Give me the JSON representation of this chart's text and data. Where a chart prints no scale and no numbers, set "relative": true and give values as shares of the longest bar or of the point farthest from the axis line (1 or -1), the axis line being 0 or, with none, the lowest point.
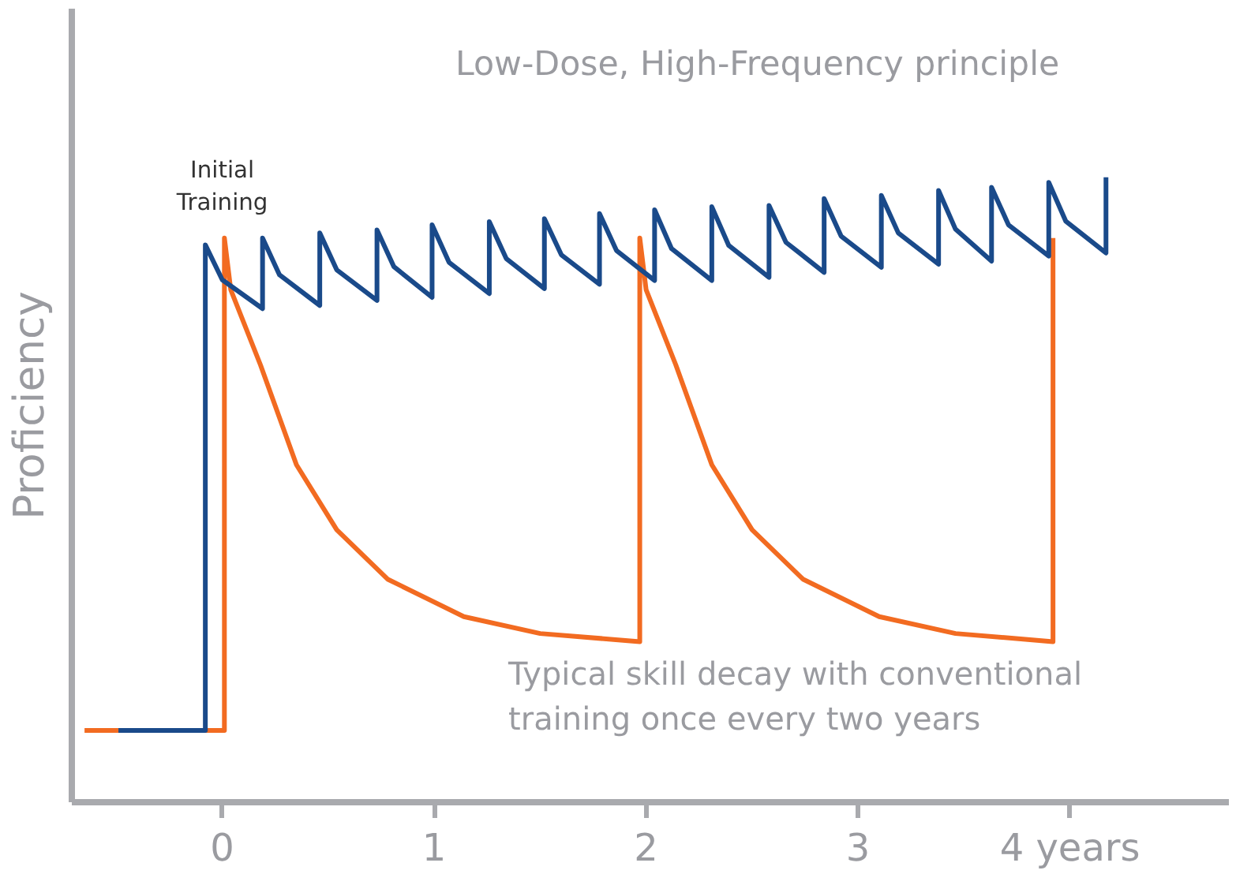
{
  "chart_data": {
    "type": "line",
    "relative": true,
    "ylabel": "Proficiency",
    "xlim": [
      -0.71,
      4.75
    ],
    "xticks": [
      0,
      1,
      2,
      3,
      {
        "value": 4,
        "label": "4 years"
      }
    ],
    "grid": false,
    "marker": "none",
    "line_style": "solid",
    "annotations": [
      "Low-Dose, High-Frequency principle",
      "Typical skill decay with conventional\ntraining once every two years",
      {
        "text": "Initial\nTraining",
        "x": 0,
        "y": 0.903
      }
    ],
    "series": [
      {
        "color": "#f26b21",
        "x": [
          -0.65,
          0.01,
          0.01,
          0.04,
          0.18,
          0.35,
          0.54,
          0.78,
          1.14,
          1.5,
          1.97,
          1.97,
          2.0,
          2.14,
          2.31,
          2.5,
          2.74,
          3.1,
          3.46,
          3.92,
          3.92
        ],
        "values": [
          0.115,
          0.115,
          0.903,
          0.82,
          0.7,
          0.54,
          0.436,
          0.357,
          0.297,
          0.27,
          0.257,
          0.903,
          0.82,
          0.7,
          0.54,
          0.436,
          0.357,
          0.297,
          0.27,
          0.257,
          0.903
        ]
      },
      {
        "color": "#1a4a8a",
        "x": [
          -0.49,
          -0.08,
          -0.08,
          0.0,
          0.19,
          0.19,
          0.27,
          0.46,
          0.46,
          0.54,
          0.73,
          0.73,
          0.81,
          0.99,
          0.99,
          1.07,
          1.26,
          1.26,
          1.34,
          1.52,
          1.52,
          1.6,
          1.78,
          1.78,
          1.86,
          2.04,
          2.04,
          2.12,
          2.31,
          2.31,
          2.39,
          2.58,
          2.58,
          2.66,
          2.84,
          2.84,
          2.92,
          3.11,
          3.11,
          3.19,
          3.38,
          3.38,
          3.46,
          3.63,
          3.63,
          3.71,
          3.9,
          3.9,
          3.98,
          4.17,
          4.17
        ],
        "values": [
          0.115,
          0.115,
          0.892,
          0.836,
          0.79,
          0.903,
          0.844,
          0.795,
          0.911,
          0.852,
          0.803,
          0.916,
          0.857,
          0.808,
          0.924,
          0.864,
          0.814,
          0.929,
          0.87,
          0.822,
          0.934,
          0.876,
          0.829,
          0.942,
          0.883,
          0.835,
          0.948,
          0.886,
          0.835,
          0.953,
          0.891,
          0.84,
          0.955,
          0.896,
          0.848,
          0.966,
          0.906,
          0.856,
          0.971,
          0.911,
          0.861,
          0.979,
          0.917,
          0.866,
          0.984,
          0.924,
          0.874,
          0.992,
          0.93,
          0.879,
          1.0
        ]
      }
    ]
  }
}
